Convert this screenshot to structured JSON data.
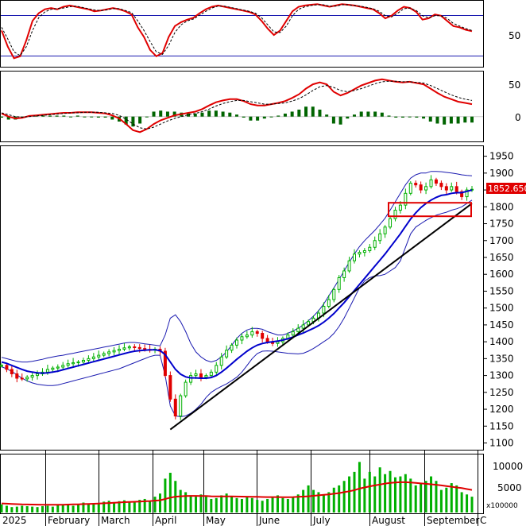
{
  "chart_data": [
    {
      "type": "line",
      "panel": "stochastic",
      "y_ticks": [
        "50"
      ],
      "ylim": [
        0,
        100
      ],
      "reference_lines": [
        80,
        20
      ],
      "series": [
        {
          "color": "#e00000",
          "values": [
            55,
            30,
            12,
            15,
            40,
            70,
            82,
            88,
            90,
            88,
            92,
            94,
            92,
            90,
            88,
            85,
            86,
            88,
            90,
            88,
            85,
            80,
            60,
            45,
            25,
            15,
            20,
            45,
            62,
            68,
            72,
            75,
            82,
            88,
            92,
            94,
            92,
            90,
            88,
            86,
            84,
            80,
            70,
            58,
            48,
            55,
            70,
            85,
            92,
            94,
            95,
            96,
            94,
            92,
            94,
            96,
            95,
            94,
            92,
            90,
            88,
            82,
            74,
            78,
            86,
            92,
            90,
            84,
            72,
            74,
            80,
            78,
            70,
            62,
            60,
            56,
            54
          ]
        },
        {
          "color": "#000000",
          "dash": true,
          "values": [
            60,
            42,
            22,
            16,
            30,
            55,
            75,
            84,
            88,
            89,
            90,
            92,
            93,
            91,
            89,
            87,
            86,
            87,
            89,
            89,
            86,
            83,
            70,
            55,
            38,
            22,
            18,
            32,
            52,
            64,
            70,
            73,
            79,
            85,
            90,
            93,
            93,
            91,
            89,
            87,
            85,
            82,
            75,
            64,
            53,
            52,
            62,
            78,
            88,
            92,
            94,
            95,
            95,
            93,
            93,
            95,
            95,
            94,
            93,
            91,
            89,
            85,
            78,
            76,
            82,
            89,
            90,
            86,
            78,
            75,
            78,
            78,
            74,
            66,
            62,
            58,
            55
          ]
        }
      ]
    },
    {
      "type": "line",
      "panel": "macd",
      "y_ticks": [
        "50",
        "0"
      ],
      "ylim": [
        -40,
        70
      ],
      "histogram_color": "#006400",
      "series": [
        {
          "color": "#e00000",
          "values": [
            5,
            0,
            -3,
            -2,
            1,
            2,
            3,
            4,
            5,
            6,
            6,
            7,
            7,
            7,
            6,
            5,
            2,
            -3,
            -12,
            -22,
            -25,
            -20,
            -12,
            -6,
            -2,
            2,
            4,
            6,
            8,
            12,
            18,
            23,
            26,
            28,
            28,
            25,
            20,
            18,
            18,
            20,
            22,
            25,
            30,
            36,
            45,
            52,
            55,
            52,
            40,
            34,
            38,
            44,
            50,
            54,
            58,
            60,
            58,
            56,
            55,
            56,
            54,
            52,
            45,
            38,
            32,
            28,
            24,
            22,
            20
          ]
        },
        {
          "color": "#000000",
          "dash": true,
          "values": [
            6,
            3,
            0,
            -1,
            0,
            1,
            2,
            3,
            4,
            5,
            6,
            6,
            7,
            7,
            7,
            6,
            5,
            2,
            -4,
            -12,
            -18,
            -20,
            -17,
            -12,
            -7,
            -3,
            0,
            3,
            5,
            8,
            12,
            17,
            21,
            24,
            26,
            26,
            24,
            22,
            20,
            20,
            21,
            22,
            25,
            29,
            35,
            42,
            48,
            50,
            47,
            42,
            40,
            42,
            45,
            49,
            53,
            56,
            57,
            57,
            56,
            56,
            55,
            54,
            50,
            45,
            40,
            35,
            31,
            28,
            26
          ]
        }
      ]
    },
    {
      "type": "line",
      "panel": "price",
      "ylim": [
        1080,
        1975
      ],
      "y_ticks": [
        "1950",
        "1900",
        "1850",
        "1800",
        "1750",
        "1700",
        "1650",
        "1600",
        "1550",
        "1500",
        "1450",
        "1400",
        "1350",
        "1300",
        "1250",
        "1200",
        "1150",
        "1100"
      ],
      "current_price_label": "1852.650",
      "x_labels": [
        "2025",
        "February",
        "March",
        "April",
        "May",
        "June",
        "July",
        "August",
        "September",
        "C"
      ],
      "close": [
        1330,
        1318,
        1305,
        1292,
        1290,
        1295,
        1300,
        1305,
        1310,
        1318,
        1322,
        1325,
        1330,
        1335,
        1338,
        1340,
        1345,
        1350,
        1355,
        1360,
        1365,
        1370,
        1374,
        1378,
        1382,
        1385,
        1383,
        1380,
        1377,
        1376,
        1378,
        1372,
        1300,
        1230,
        1180,
        1240,
        1280,
        1300,
        1305,
        1295,
        1300,
        1310,
        1330,
        1355,
        1375,
        1390,
        1405,
        1415,
        1420,
        1430,
        1425,
        1410,
        1400,
        1395,
        1400,
        1410,
        1420,
        1430,
        1440,
        1450,
        1460,
        1470,
        1485,
        1505,
        1525,
        1555,
        1590,
        1610,
        1640,
        1660,
        1665,
        1670,
        1680,
        1700,
        1720,
        1740,
        1765,
        1790,
        1805,
        1840,
        1870,
        1865,
        1850,
        1860,
        1880,
        1870,
        1860,
        1850,
        1860,
        1845,
        1830,
        1850,
        1852
      ],
      "ma_color": "#0000cc",
      "ma": [
        1340,
        1336,
        1330,
        1324,
        1318,
        1313,
        1310,
        1308,
        1307,
        1308,
        1310,
        1313,
        1317,
        1321,
        1325,
        1329,
        1333,
        1337,
        1341,
        1345,
        1349,
        1353,
        1357,
        1361,
        1365,
        1369,
        1372,
        1374,
        1375,
        1376,
        1376,
        1374,
        1362,
        1340,
        1318,
        1304,
        1296,
        1293,
        1293,
        1292,
        1292,
        1294,
        1300,
        1310,
        1322,
        1335,
        1348,
        1360,
        1372,
        1382,
        1390,
        1395,
        1398,
        1400,
        1402,
        1405,
        1409,
        1414,
        1420,
        1426,
        1433,
        1440,
        1448,
        1458,
        1470,
        1484,
        1500,
        1516,
        1534,
        1552,
        1570,
        1588,
        1606,
        1624,
        1642,
        1660,
        1680,
        1700,
        1720,
        1742,
        1764,
        1782,
        1798,
        1810,
        1820,
        1828,
        1834,
        1836,
        1840,
        1842,
        1842,
        1846,
        1850
      ],
      "upper_band": [
        1354,
        1350,
        1346,
        1342,
        1340,
        1340,
        1342,
        1345,
        1348,
        1352,
        1355,
        1358,
        1360,
        1363,
        1366,
        1369,
        1372,
        1375,
        1378,
        1381,
        1384,
        1387,
        1390,
        1393,
        1396,
        1398,
        1398,
        1396,
        1394,
        1392,
        1390,
        1388,
        1420,
        1470,
        1480,
        1460,
        1430,
        1395,
        1370,
        1355,
        1345,
        1340,
        1345,
        1355,
        1370,
        1390,
        1410,
        1425,
        1435,
        1440,
        1440,
        1437,
        1430,
        1425,
        1420,
        1420,
        1425,
        1432,
        1440,
        1450,
        1462,
        1476,
        1492,
        1512,
        1536,
        1560,
        1585,
        1610,
        1636,
        1660,
        1682,
        1700,
        1715,
        1730,
        1748,
        1766,
        1790,
        1815,
        1840,
        1865,
        1885,
        1895,
        1900,
        1900,
        1905,
        1905,
        1904,
        1902,
        1900,
        1898,
        1895,
        1893,
        1892
      ],
      "lower_band": [
        1326,
        1320,
        1312,
        1302,
        1292,
        1284,
        1278,
        1274,
        1272,
        1270,
        1270,
        1272,
        1276,
        1280,
        1284,
        1288,
        1292,
        1296,
        1300,
        1304,
        1308,
        1312,
        1316,
        1320,
        1326,
        1332,
        1338,
        1344,
        1350,
        1356,
        1360,
        1360,
        1300,
        1210,
        1180,
        1178,
        1180,
        1188,
        1200,
        1215,
        1235,
        1250,
        1260,
        1268,
        1275,
        1285,
        1295,
        1310,
        1330,
        1350,
        1365,
        1372,
        1373,
        1372,
        1370,
        1368,
        1366,
        1365,
        1364,
        1366,
        1372,
        1380,
        1390,
        1400,
        1410,
        1425,
        1445,
        1470,
        1500,
        1530,
        1560,
        1580,
        1590,
        1595,
        1596,
        1600,
        1610,
        1620,
        1640,
        1680,
        1720,
        1740,
        1750,
        1760,
        1768,
        1775,
        1780,
        1784,
        1790,
        1794,
        1800,
        1810,
        1820
      ],
      "trendline": [
        [
          33,
          1140
        ],
        [
          92,
          1810
        ]
      ],
      "highlight_zone": [
        1772,
        1812
      ],
      "highlight_color": "#e00000"
    },
    {
      "type": "bar",
      "panel": "volume",
      "y_ticks": [
        "10000",
        "5000"
      ],
      "y_multiplier_label": "x100000",
      "ylim": [
        0,
        12500
      ],
      "bar_color": "#00b000",
      "ma_color": "#e00000",
      "values": [
        1800,
        1500,
        1200,
        1300,
        1500,
        1400,
        1300,
        1200,
        1400,
        1500,
        1300,
        1600,
        1800,
        1700,
        1500,
        1900,
        2200,
        2000,
        1800,
        2100,
        2400,
        2600,
        2300,
        2500,
        2700,
        2400,
        2200,
        2800,
        3000,
        2600,
        3500,
        4200,
        7500,
        8800,
        7000,
        5000,
        4500,
        3800,
        3500,
        4000,
        3500,
        3000,
        3200,
        3800,
        4200,
        3500,
        3200,
        3000,
        3400,
        3200,
        2800,
        2600,
        3000,
        3500,
        3800,
        3200,
        3000,
        3500,
        4000,
        5000,
        6000,
        5000,
        4500,
        4000,
        4500,
        5500,
        6000,
        7000,
        8000,
        9000,
        11200,
        7500,
        9000,
        8000,
        10000,
        8500,
        9200,
        7800,
        8000,
        8500,
        7500,
        6000,
        6500,
        7000,
        8000,
        7000,
        5000,
        5500,
        6500,
        6000,
        4500,
        4000,
        3500
      ],
      "ma": [
        2000,
        1950,
        1900,
        1850,
        1800,
        1780,
        1760,
        1740,
        1720,
        1700,
        1700,
        1710,
        1730,
        1760,
        1790,
        1820,
        1860,
        1900,
        1940,
        1990,
        2040,
        2100,
        2160,
        2220,
        2280,
        2330,
        2380,
        2430,
        2480,
        2540,
        2620,
        2720,
        3000,
        3300,
        3500,
        3600,
        3650,
        3680,
        3680,
        3660,
        3640,
        3600,
        3580,
        3560,
        3560,
        3550,
        3540,
        3520,
        3500,
        3480,
        3460,
        3440,
        3420,
        3410,
        3410,
        3400,
        3400,
        3420,
        3460,
        3520,
        3600,
        3700,
        3800,
        3900,
        4000,
        4150,
        4300,
        4500,
        4700,
        4950,
        5300,
        5550,
        5800,
        6000,
        6200,
        6400,
        6550,
        6650,
        6700,
        6700,
        6650,
        6550,
        6450,
        6350,
        6250,
        6150,
        6000,
        5850,
        5700,
        5550,
        5400,
        5200,
        5000
      ]
    }
  ]
}
